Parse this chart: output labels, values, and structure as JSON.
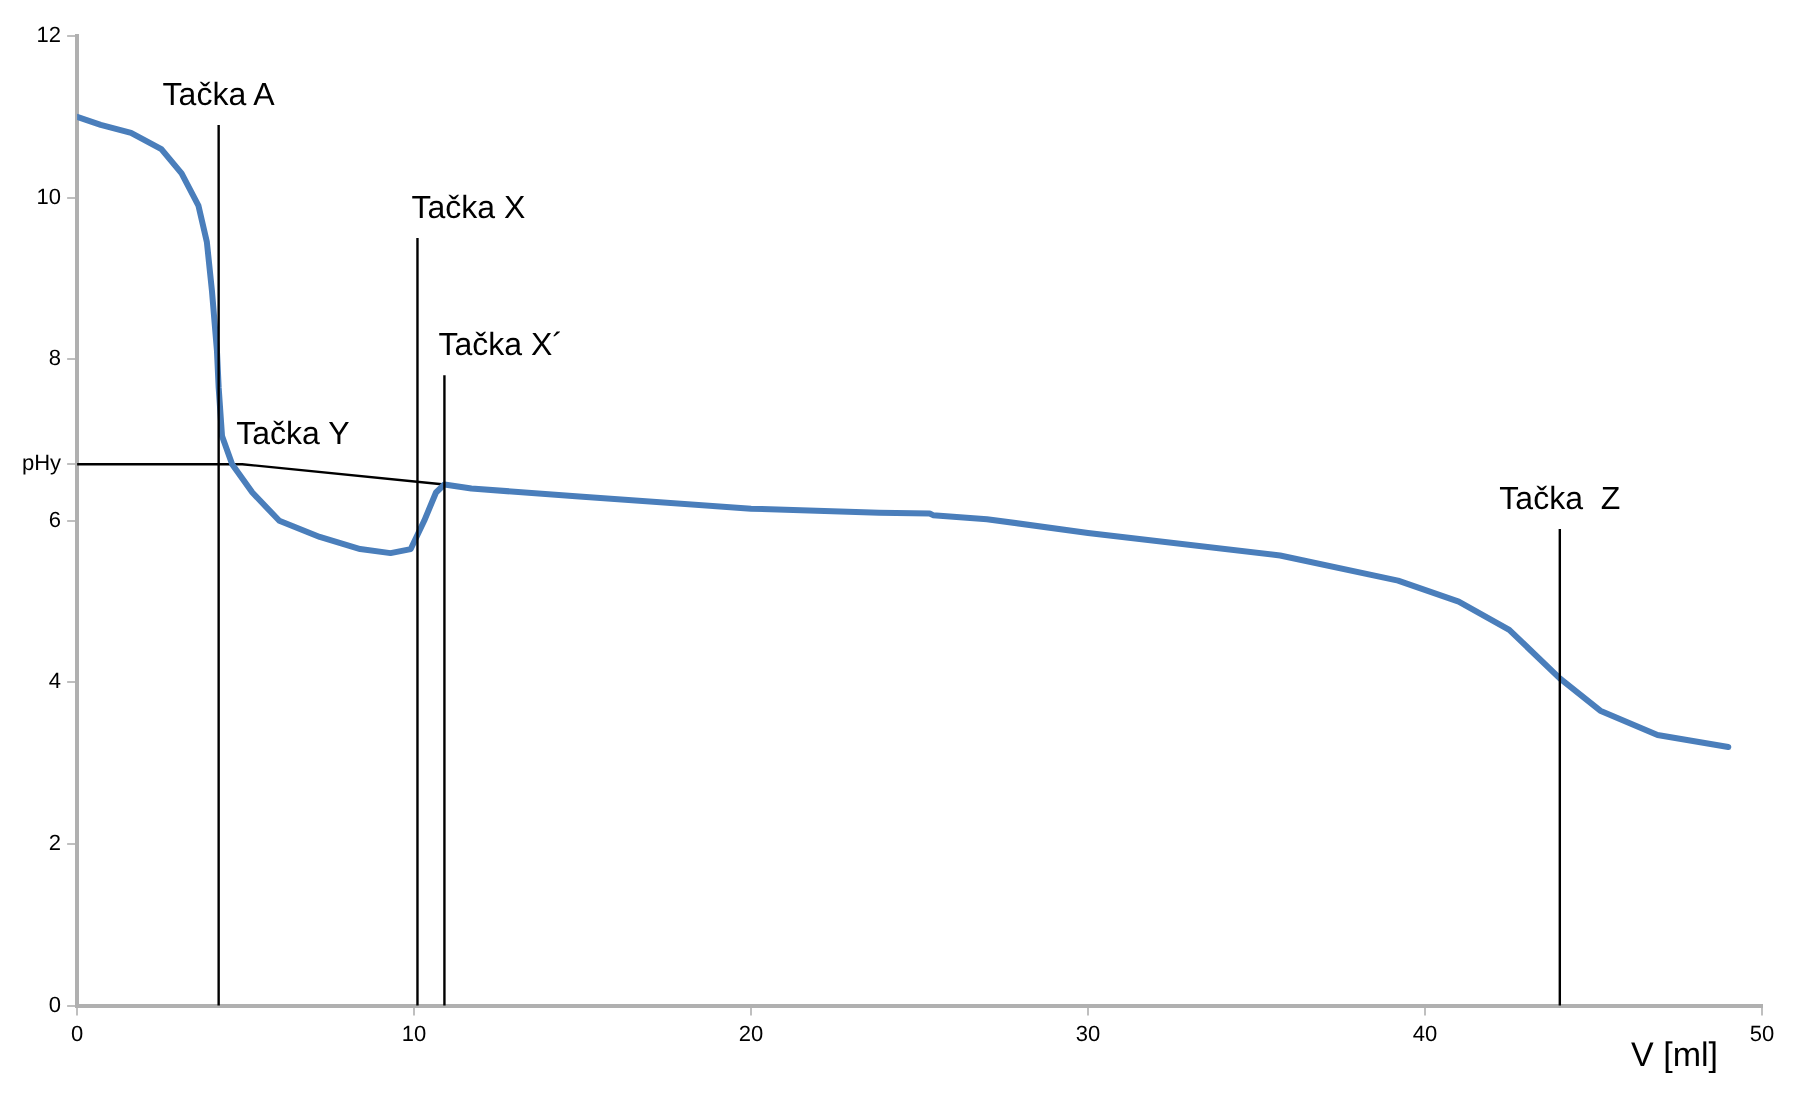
{
  "chart_data": {
    "type": "line",
    "xlabel": "V [ml]",
    "xlim": [
      0,
      50
    ],
    "xticks": [
      0,
      10,
      20,
      30,
      40,
      50
    ],
    "ylim": [
      0,
      12
    ],
    "yticks": [
      0,
      2,
      4,
      {
        "value": 6.7,
        "label": "pHy"
      },
      6,
      8,
      10,
      12
    ],
    "grid": false,
    "legend": false,
    "marker": "none",
    "line_style": "solid",
    "series": [
      {
        "color": "#4a7ebb",
        "x": [
          0,
          0.7,
          1.6,
          2.5,
          3.1,
          3.6,
          3.85,
          4.0,
          4.15,
          4.2,
          4.3,
          4.6,
          5.2,
          6.0,
          7.2,
          8.4,
          9.3,
          9.9,
          10.3,
          10.65,
          10.9,
          11.7,
          14.9,
          20,
          23.8,
          25.3,
          25.4,
          27,
          30,
          35.7,
          39.2,
          41,
          42.5,
          44,
          45.2,
          46.9,
          49
        ],
        "values": [
          11.0,
          10.9,
          10.8,
          10.6,
          10.3,
          9.9,
          9.45,
          8.85,
          8.1,
          7.65,
          7.05,
          6.7,
          6.35,
          6.0,
          5.8,
          5.65,
          5.6,
          5.65,
          6.0,
          6.35,
          6.45,
          6.4,
          6.3,
          6.15,
          6.1,
          6.09,
          6.07,
          6.02,
          5.85,
          5.57,
          5.26,
          5.0,
          4.65,
          4.05,
          3.65,
          3.35,
          3.2
        ]
      },
      {
        "color": "#000000",
        "x": [
          0,
          4.9,
          10.9
        ],
        "values": [
          6.7,
          6.7,
          6.45
        ]
      }
    ],
    "ref_lines": [
      {
        "axis": "x",
        "value": 4.2,
        "color": "#000000"
      },
      {
        "axis": "x",
        "value": 10.1,
        "color": "#000000"
      },
      {
        "axis": "x",
        "value": 10.9,
        "color": "#000000"
      },
      {
        "axis": "x",
        "value": 44,
        "color": "#000000"
      }
    ],
    "annotations": [
      {
        "text": "Tačka A",
        "x": 4.2,
        "y": 10.9
      },
      {
        "text": "Tačka X",
        "x": 10.1,
        "y": 9.5
      },
      {
        "text": "Tačka X´",
        "x": 10.9,
        "y": 7.8
      },
      {
        "text": "Tačka Y",
        "x": 4.9,
        "y": 6.7
      },
      {
        "text": "Tačka  Z",
        "x": 44,
        "y": 5.9
      }
    ]
  }
}
